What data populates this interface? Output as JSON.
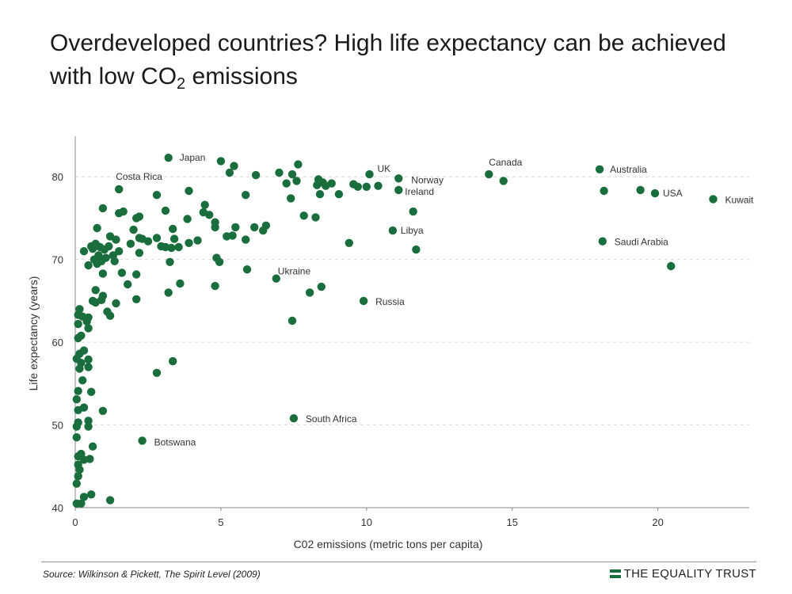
{
  "slide": {
    "title_main": "Overdeveloped countries? High life expectancy can be achieved with low CO",
    "title_sub": "2",
    "title_end": " emissions",
    "source_prefix": "Source: ",
    "source_authors": "Wilkinson & Pickett, ",
    "source_work": "The Spirit Level",
    "source_year": " (2009)",
    "brand": "THE EQUALITY TRUST"
  },
  "colors": {
    "point": "#1a6e3e",
    "axis": "#888888",
    "grid": "#d9d9d9",
    "brand_green": "#1a6e3e"
  },
  "chart_data": {
    "type": "scatter",
    "xlabel": "C02 emissions (metric tons per capita)",
    "ylabel": "Life expectancy (years)",
    "xlim": [
      0,
      23
    ],
    "ylim": [
      40,
      85
    ],
    "xticks": [
      0,
      5,
      10,
      15,
      20
    ],
    "yticks": [
      40,
      50,
      60,
      70,
      80
    ],
    "grid": "horizontal dashed",
    "legend": "none",
    "labeled_points": [
      {
        "label": "Japan",
        "x": 3.2,
        "y": 82.3
      },
      {
        "label": "Costa Rica",
        "x": 1.5,
        "y": 78.5
      },
      {
        "label": "UK",
        "x": 10.1,
        "y": 80.3
      },
      {
        "label": "Norway",
        "x": 11.1,
        "y": 79.8
      },
      {
        "label": "Ireland",
        "x": 11.1,
        "y": 78.4
      },
      {
        "label": "Canada",
        "x": 14.2,
        "y": 80.3
      },
      {
        "label": "Australia",
        "x": 18,
        "y": 80.9
      },
      {
        "label": "USA",
        "x": 19.9,
        "y": 78
      },
      {
        "label": "Kuwait",
        "x": 21.9,
        "y": 77.3
      },
      {
        "label": "Libya",
        "x": 10.9,
        "y": 73.5
      },
      {
        "label": "Saudi Arabia",
        "x": 18.1,
        "y": 72.2
      },
      {
        "label": "Ukraine",
        "x": 6.9,
        "y": 67.7
      },
      {
        "label": "Russia",
        "x": 9.9,
        "y": 65
      },
      {
        "label": "South Africa",
        "x": 7.5,
        "y": 50.8
      },
      {
        "label": "Botswana",
        "x": 2.3,
        "y": 48.1
      }
    ],
    "points": [
      [
        0.05,
        40.5
      ],
      [
        0.05,
        42.9
      ],
      [
        0.1,
        43.8
      ],
      [
        0.1,
        45.2
      ],
      [
        0.15,
        44.6
      ],
      [
        0.1,
        46.2
      ],
      [
        0.3,
        45.8
      ],
      [
        0.2,
        46.5
      ],
      [
        0.5,
        45.9
      ],
      [
        0.3,
        41.3
      ],
      [
        0.2,
        40.5
      ],
      [
        0.55,
        41.6
      ],
      [
        1.2,
        40.9
      ],
      [
        0.6,
        47.4
      ],
      [
        0.05,
        48.5
      ],
      [
        0.05,
        49.8
      ],
      [
        0.1,
        50.3
      ],
      [
        0.1,
        51.8
      ],
      [
        0.3,
        52.1
      ],
      [
        0.45,
        49.8
      ],
      [
        0.45,
        50.5
      ],
      [
        0.95,
        51.7
      ],
      [
        0.05,
        53.1
      ],
      [
        0.1,
        54.1
      ],
      [
        0.25,
        55.4
      ],
      [
        0.55,
        54.0
      ],
      [
        0.15,
        56.8
      ],
      [
        0.05,
        58.0
      ],
      [
        0.15,
        58.6
      ],
      [
        0.2,
        57.5
      ],
      [
        0.3,
        59.0
      ],
      [
        0.45,
        57.9
      ],
      [
        0.45,
        57.0
      ],
      [
        0.1,
        60.5
      ],
      [
        0.2,
        60.8
      ],
      [
        0.1,
        62.2
      ],
      [
        0.1,
        63.3
      ],
      [
        0.15,
        64.0
      ],
      [
        0.25,
        63.1
      ],
      [
        0.4,
        62.5
      ],
      [
        0.45,
        61.7
      ],
      [
        0.45,
        63.0
      ],
      [
        0.7,
        64.8
      ],
      [
        0.6,
        65.0
      ],
      [
        0.9,
        65.1
      ],
      [
        0.95,
        65.6
      ],
      [
        1.1,
        63.7
      ],
      [
        1.2,
        63.2
      ],
      [
        1.4,
        64.7
      ],
      [
        0.7,
        66.3
      ],
      [
        2.1,
        65.2
      ],
      [
        3.2,
        66.0
      ],
      [
        0.3,
        71.0
      ],
      [
        0.45,
        69.3
      ],
      [
        0.55,
        71.6
      ],
      [
        0.6,
        71.3
      ],
      [
        0.65,
        70.0
      ],
      [
        0.7,
        71.9
      ],
      [
        0.75,
        69.5
      ],
      [
        0.8,
        70.5
      ],
      [
        0.85,
        71.5
      ],
      [
        0.9,
        69.8
      ],
      [
        0.95,
        68.3
      ],
      [
        1.0,
        71.2
      ],
      [
        1.05,
        70.2
      ],
      [
        1.15,
        71.6
      ],
      [
        1.2,
        72.8
      ],
      [
        1.3,
        70.5
      ],
      [
        1.35,
        69.8
      ],
      [
        1.4,
        72.4
      ],
      [
        0.75,
        73.8
      ],
      [
        1.5,
        71.0
      ],
      [
        1.6,
        68.4
      ],
      [
        1.8,
        67.0
      ],
      [
        1.9,
        71.9
      ],
      [
        2.0,
        73.6
      ],
      [
        2.1,
        68.2
      ],
      [
        2.2,
        72.6
      ],
      [
        2.2,
        70.8
      ],
      [
        2.3,
        72.5
      ],
      [
        2.5,
        72.2
      ],
      [
        2.8,
        72.6
      ],
      [
        2.95,
        71.6
      ],
      [
        3.1,
        71.5
      ],
      [
        3.25,
        69.7
      ],
      [
        3.3,
        71.4
      ],
      [
        3.35,
        73.7
      ],
      [
        3.4,
        72.5
      ],
      [
        3.55,
        71.5
      ],
      [
        3.6,
        67.1
      ],
      [
        3.85,
        74.9
      ],
      [
        3.9,
        72.0
      ],
      [
        4.2,
        72.3
      ],
      [
        4.4,
        75.7
      ],
      [
        4.6,
        75.4
      ],
      [
        0.95,
        76.2
      ],
      [
        1.5,
        75.6
      ],
      [
        1.65,
        75.8
      ],
      [
        2.1,
        75.0
      ],
      [
        2.2,
        75.2
      ],
      [
        2.8,
        77.8
      ],
      [
        3.1,
        75.9
      ],
      [
        3.9,
        78.3
      ],
      [
        4.45,
        76.6
      ],
      [
        4.8,
        74.5
      ],
      [
        4.8,
        73.9
      ],
      [
        4.85,
        70.2
      ],
      [
        4.95,
        69.7
      ],
      [
        4.8,
        66.8
      ],
      [
        5.2,
        72.8
      ],
      [
        5.4,
        72.9
      ],
      [
        5.5,
        73.9
      ],
      [
        5.85,
        72.4
      ],
      [
        5.9,
        68.8
      ],
      [
        5.85,
        77.8
      ],
      [
        6.15,
        73.9
      ],
      [
        6.45,
        73.5
      ],
      [
        6.55,
        74.1
      ],
      [
        6.2,
        80.2
      ],
      [
        5.3,
        80.5
      ],
      [
        5.45,
        81.3
      ],
      [
        5.0,
        81.9
      ],
      [
        7.0,
        80.5
      ],
      [
        7.25,
        79.2
      ],
      [
        7.4,
        77.4
      ],
      [
        7.45,
        80.3
      ],
      [
        7.6,
        79.5
      ],
      [
        7.65,
        81.5
      ],
      [
        7.85,
        75.3
      ],
      [
        8.25,
        75.1
      ],
      [
        8.3,
        79.0
      ],
      [
        8.35,
        79.7
      ],
      [
        8.4,
        77.9
      ],
      [
        8.5,
        79.3
      ],
      [
        8.6,
        78.9
      ],
      [
        8.8,
        79.2
      ],
      [
        9.05,
        77.9
      ],
      [
        9.4,
        72.0
      ],
      [
        9.55,
        79.1
      ],
      [
        9.7,
        78.8
      ],
      [
        10.0,
        78.8
      ],
      [
        10.4,
        78.9
      ],
      [
        11.6,
        75.8
      ],
      [
        11.7,
        71.2
      ],
      [
        8.05,
        66.0
      ],
      [
        8.45,
        66.7
      ],
      [
        7.45,
        62.6
      ],
      [
        14.7,
        79.5
      ],
      [
        18.15,
        78.3
      ],
      [
        19.4,
        78.4
      ],
      [
        20.45,
        69.2
      ],
      [
        2.8,
        56.3
      ],
      [
        3.35,
        57.7
      ]
    ]
  }
}
